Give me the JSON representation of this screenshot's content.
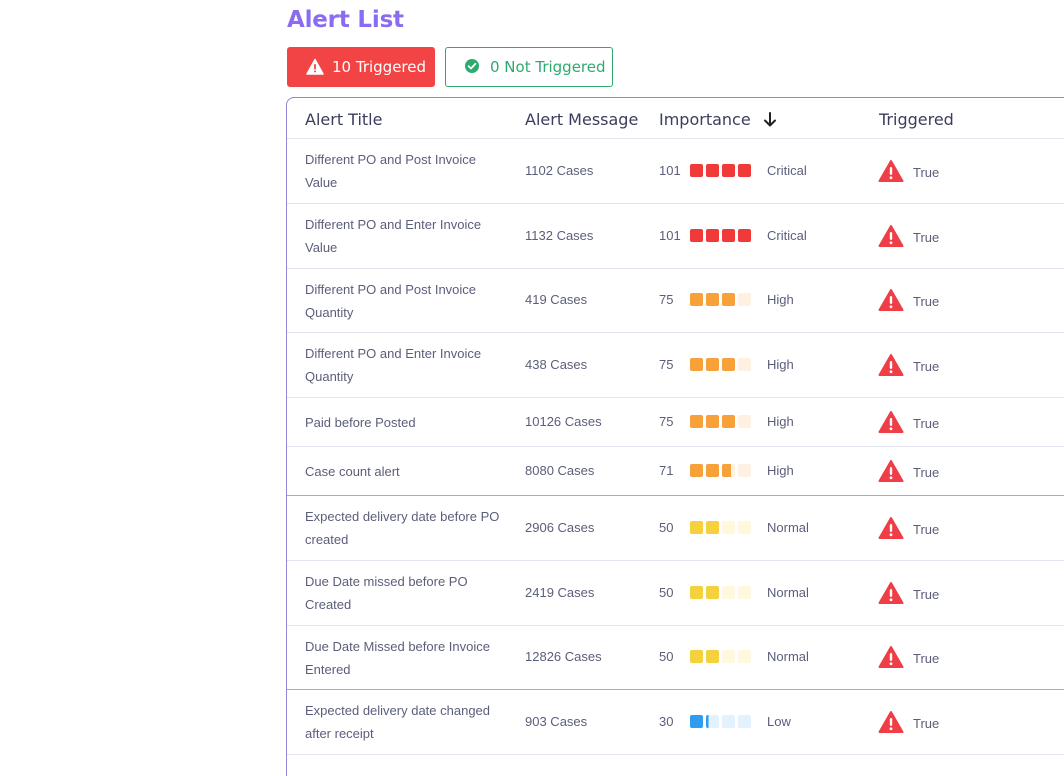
{
  "page": {
    "title": "Alert List"
  },
  "filters": {
    "triggered_label": "10 Triggered",
    "not_triggered_label": "0 Not Triggered"
  },
  "colors": {
    "critical": "#f03a3a",
    "critical_empty": "#fde2e2",
    "high": "#f7a13a",
    "high_empty": "#fff1e2",
    "normal": "#f6d13e",
    "normal_empty": "#fff8df",
    "low": "#2f9cf0",
    "low_empty": "#e2f2ff"
  },
  "columns": [
    "Alert Title",
    "Alert Message",
    "Importance",
    "Triggered"
  ],
  "rows": [
    {
      "title": "Different PO and Post Invoice Value",
      "message": "1102 Cases",
      "score": "101",
      "level": "Critical",
      "filled": 4,
      "partial": 0,
      "triggered": "True"
    },
    {
      "title": "Different PO and Enter Invoice Value",
      "message": "1132 Cases",
      "score": "101",
      "level": "Critical",
      "filled": 4,
      "partial": 0,
      "triggered": "True"
    },
    {
      "title": "Different PO and Post Invoice Quantity",
      "message": "419 Cases",
      "score": "75",
      "level": "High",
      "filled": 3,
      "partial": 0,
      "triggered": "True"
    },
    {
      "title": "Different PO and Enter Invoice Quantity",
      "message": "438 Cases",
      "score": "75",
      "level": "High",
      "filled": 3,
      "partial": 0,
      "triggered": "True"
    },
    {
      "title": "Paid before Posted",
      "message": "10126 Cases",
      "score": "75",
      "level": "High",
      "filled": 3,
      "partial": 0,
      "triggered": "True"
    },
    {
      "title": "Case count alert",
      "message": "8080 Cases",
      "score": "71",
      "level": "High",
      "filled": 2,
      "partial": 0.7,
      "triggered": "True"
    },
    {
      "title": "Expected delivery date before PO created",
      "message": "2906 Cases",
      "score": "50",
      "level": "Normal",
      "filled": 2,
      "partial": 0,
      "triggered": "True"
    },
    {
      "title": "Due Date missed before PO Created",
      "message": "2419 Cases",
      "score": "50",
      "level": "Normal",
      "filled": 2,
      "partial": 0,
      "triggered": "True"
    },
    {
      "title": "Due Date Missed before Invoice Entered",
      "message": "12826 Cases",
      "score": "50",
      "level": "Normal",
      "filled": 2,
      "partial": 0,
      "triggered": "True"
    },
    {
      "title": "Expected delivery date changed after receipt",
      "message": "903 Cases",
      "score": "30",
      "level": "Low",
      "filled": 1,
      "partial": 0.2,
      "triggered": "True"
    }
  ]
}
